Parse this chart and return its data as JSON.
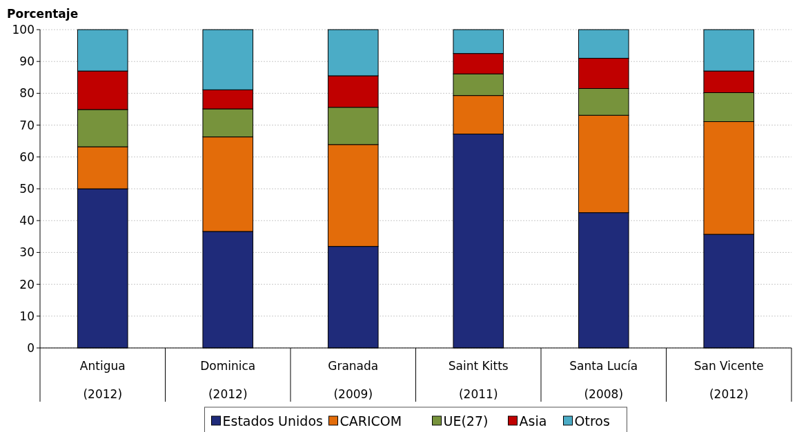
{
  "chart_data": {
    "type": "bar",
    "stacked": true,
    "ylabel": "Porcentaje",
    "categories": [
      "Antigua\n(2012)",
      "Dominica\n(2012)",
      "Granada\n(2009)",
      "Saint Kitts\n(2011)",
      "Santa Lucía\n(2008)",
      "San Vicente\n(2012)"
    ],
    "series": [
      {
        "name": "Estados Unidos",
        "color": "#1f2b7a",
        "values": [
          50.0,
          36.6,
          31.9,
          67.2,
          42.5,
          35.7
        ]
      },
      {
        "name": "CARICOM",
        "color": "#e36c0a",
        "values": [
          13.2,
          29.7,
          32.0,
          12.1,
          30.6,
          35.4
        ]
      },
      {
        "name": "UE(27)",
        "color": "#77933c",
        "values": [
          11.7,
          8.8,
          11.7,
          6.8,
          8.4,
          9.1
        ]
      },
      {
        "name": "Asia",
        "color": "#c00000",
        "values": [
          12.1,
          6.0,
          9.9,
          6.4,
          9.5,
          6.8
        ]
      },
      {
        "name": "Otros",
        "color": "#4bacc6",
        "values": [
          13.0,
          18.9,
          14.5,
          7.5,
          9.0,
          13.0
        ]
      }
    ],
    "ylim": [
      0,
      100
    ],
    "yticks": [
      0,
      10,
      20,
      30,
      40,
      50,
      60,
      70,
      80,
      90,
      100
    ],
    "grid": "y",
    "legend": "bottom"
  }
}
